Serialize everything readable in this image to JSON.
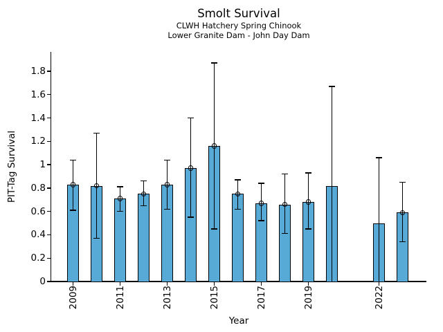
{
  "header": {
    "title": "Smolt Survival",
    "subtitle1": "CLWH Hatchery Spring Chinook",
    "subtitle2": "Lower Granite Dam - John Day Dam"
  },
  "chart_data": {
    "type": "bar",
    "title": "Smolt Survival",
    "subtitles": [
      "CLWH Hatchery Spring Chinook",
      "Lower Granite Dam - John Day Dam"
    ],
    "xlabel": "Year",
    "ylabel": "PIT-Tag Survival",
    "bar_color": "#58AAD6",
    "edge_color": "#000000",
    "grid": false,
    "legend": "none",
    "ylim": [
      0,
      1.97
    ],
    "ytick_labels": [
      "0",
      "0.2",
      "0.4",
      "0.6",
      "0.8",
      "1",
      "1.2",
      "1.4",
      "1.6",
      "1.8"
    ],
    "xtick_labels": [
      "2009",
      "2011",
      "2013",
      "2015",
      "2017",
      "2019",
      "2022"
    ],
    "note": "error bars show confidence interval; open circle marker at point estimate; 2021 has no data; lower whiskers for 2020 and 2022 extend to 0 uncapped with no marker",
    "points": [
      {
        "year": 2009,
        "value": 0.83,
        "lo": 0.61,
        "hi": 1.04,
        "marker": true,
        "lo_cap": true
      },
      {
        "year": 2010,
        "value": 0.82,
        "lo": 0.37,
        "hi": 1.27,
        "marker": true,
        "lo_cap": true
      },
      {
        "year": 2011,
        "value": 0.71,
        "lo": 0.6,
        "hi": 0.81,
        "marker": true,
        "lo_cap": true
      },
      {
        "year": 2012,
        "value": 0.75,
        "lo": 0.65,
        "hi": 0.86,
        "marker": true,
        "lo_cap": true
      },
      {
        "year": 2013,
        "value": 0.83,
        "lo": 0.62,
        "hi": 1.04,
        "marker": true,
        "lo_cap": true
      },
      {
        "year": 2014,
        "value": 0.97,
        "lo": 0.55,
        "hi": 1.4,
        "marker": true,
        "lo_cap": true
      },
      {
        "year": 2015,
        "value": 1.16,
        "lo": 0.45,
        "hi": 1.87,
        "marker": true,
        "lo_cap": true
      },
      {
        "year": 2016,
        "value": 0.75,
        "lo": 0.62,
        "hi": 0.87,
        "marker": true,
        "lo_cap": true
      },
      {
        "year": 2017,
        "value": 0.67,
        "lo": 0.52,
        "hi": 0.84,
        "marker": true,
        "lo_cap": true
      },
      {
        "year": 2018,
        "value": 0.66,
        "lo": 0.41,
        "hi": 0.92,
        "marker": true,
        "lo_cap": true
      },
      {
        "year": 2019,
        "value": 0.68,
        "lo": 0.45,
        "hi": 0.93,
        "marker": true,
        "lo_cap": true
      },
      {
        "year": 2020,
        "value": 0.82,
        "lo": 0.0,
        "hi": 1.67,
        "marker": false,
        "lo_cap": false
      },
      {
        "year": 2022,
        "value": 0.5,
        "lo": 0.0,
        "hi": 1.06,
        "marker": false,
        "lo_cap": false
      },
      {
        "year": 2023,
        "value": 0.59,
        "lo": 0.34,
        "hi": 0.85,
        "marker": true,
        "lo_cap": true
      }
    ]
  }
}
